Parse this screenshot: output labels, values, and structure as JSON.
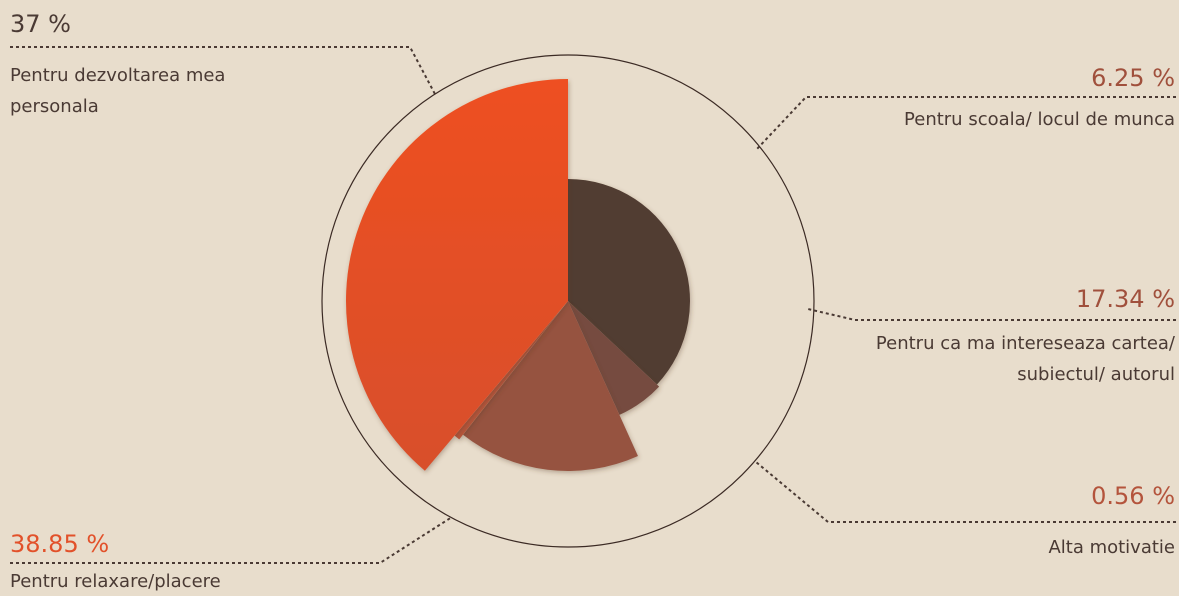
{
  "chart_data": {
    "type": "pie",
    "variant": "exploded radius pie",
    "unit": "%",
    "slices": [
      {
        "label": "Pentru dezvoltarea mea personala",
        "value": 37,
        "display": "37 %",
        "color": "#513c33"
      },
      {
        "label": "Pentru scoala/ locul de munca",
        "value": 6.25,
        "display": "6.25 %",
        "color": "#764c3f"
      },
      {
        "label": "Pentru ca ma intereseaza cartea/ subiectul/ autorul",
        "value": 17.34,
        "display": "17.34 %",
        "color": "#965340"
      },
      {
        "label": "Alta motivatie",
        "value": 0.56,
        "display": "0.56 %",
        "color": "#b6553a"
      },
      {
        "label": "Pentru relaxare/placere",
        "value": 38.85,
        "display": "38.85 %",
        "color": "#e2512a"
      }
    ],
    "colors": {
      "background": "#e8ddcc",
      "label_text": "#4a3a34",
      "leader_line": "#4a3a34",
      "outline_circle": "#3b2a24"
    }
  }
}
